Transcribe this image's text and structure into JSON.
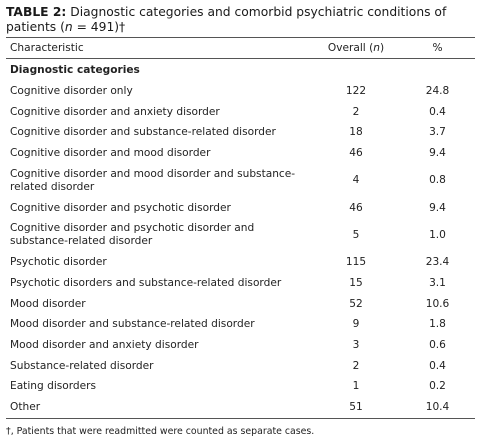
{
  "title": {
    "label": "TABLE 2:",
    "text": "Diagnostic categories and comorbid psychiatric conditions of patients (",
    "italic": "n",
    "rest": " = 491)†"
  },
  "table": {
    "header": {
      "characteristic": "Characteristic",
      "overall": "Overall (",
      "overall_italic": "n",
      "overall_end": ")",
      "percent": "%"
    },
    "section": "Diagnostic categories",
    "rows": [
      [
        "Cognitive disorder only",
        "122",
        "24.8"
      ],
      [
        "Cognitive disorder and anxiety disorder",
        "2",
        "0.4"
      ],
      [
        "Cognitive disorder and substance-related disorder",
        "18",
        "3.7"
      ],
      [
        "Cognitive disorder and mood disorder",
        "46",
        "9.4"
      ],
      [
        "Cognitive disorder and mood disorder and substance-related disorder",
        "4",
        "0.8"
      ],
      [
        "Cognitive disorder and psychotic disorder",
        "46",
        "9.4"
      ],
      [
        "Cognitive disorder and psychotic disorder and substance-related disorder",
        "5",
        "1.0"
      ],
      [
        "Psychotic disorder",
        "115",
        "23.4"
      ],
      [
        "Psychotic disorders and substance-related disorder",
        "15",
        "3.1"
      ],
      [
        "Mood disorder",
        "52",
        "10.6"
      ],
      [
        "Mood disorder and substance-related disorder",
        "9",
        "1.8"
      ],
      [
        "Mood disorder and anxiety disorder",
        "3",
        "0.6"
      ],
      [
        "Substance-related disorder",
        "2",
        "0.4"
      ],
      [
        "Eating disorders",
        "1",
        "0.2"
      ],
      [
        "Other",
        "51",
        "10.4"
      ]
    ]
  },
  "footnote": "†, Patients that were readmitted were counted as separate cases."
}
